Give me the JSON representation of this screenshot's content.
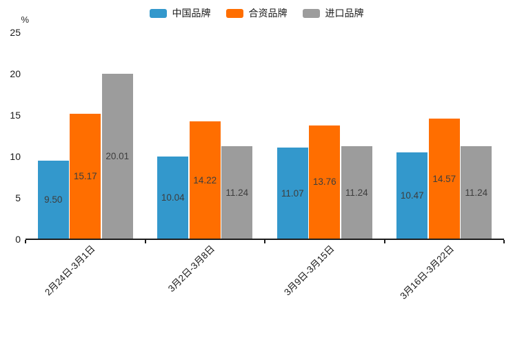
{
  "chart_data": {
    "type": "bar",
    "title": "",
    "unit_label": "%",
    "categories": [
      "2月24日-3月1日",
      "3月2日-3月8日",
      "3月9日-3月15日",
      "3月16日-3月22日"
    ],
    "series": [
      {
        "name": "中国品牌",
        "color": "#3398cc",
        "values": [
          9.5,
          10.04,
          11.07,
          10.47
        ],
        "labels": [
          "9.50",
          "10.04",
          "11.07",
          "10.47"
        ]
      },
      {
        "name": "合资品牌",
        "color": "#ff6e00",
        "values": [
          15.17,
          14.22,
          13.76,
          14.57
        ],
        "labels": [
          "15.17",
          "14.22",
          "13.76",
          "14.57"
        ]
      },
      {
        "name": "进口品牌",
        "color": "#9c9c9c",
        "values": [
          20.01,
          11.24,
          11.24,
          11.24
        ],
        "labels": [
          "20.01",
          "11.24",
          "11.24",
          "11.24"
        ]
      }
    ],
    "y_ticks": [
      "0",
      "5",
      "10",
      "15",
      "20",
      "25"
    ],
    "ylim": [
      0,
      25
    ],
    "legend_position": "top",
    "grid": false,
    "value_labels_shown": true,
    "colors": {
      "axis": "#1a1a1a",
      "bar_value_text": "#3d3d3d",
      "tick_text": "#1a1a1a"
    }
  }
}
